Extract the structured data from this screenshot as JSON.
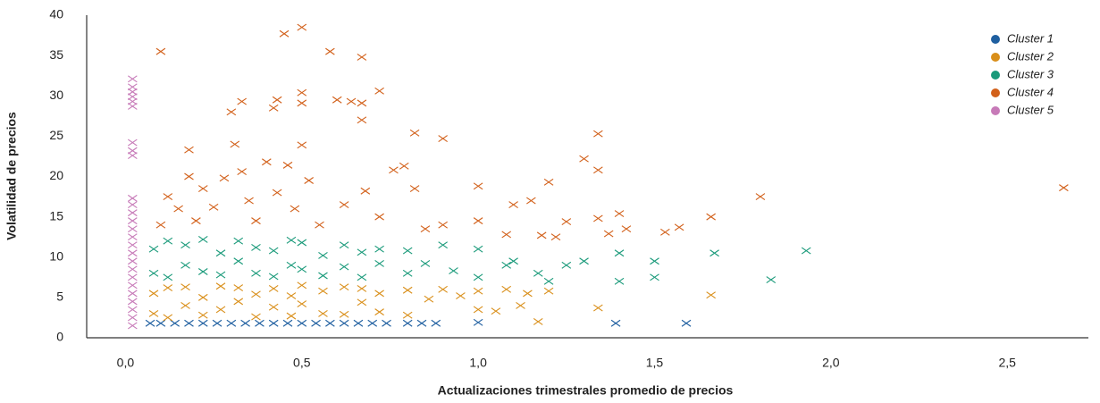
{
  "chart_data": {
    "type": "scatter",
    "x_label": "Actualizaciones trimestrales promedio de precios",
    "y_label": "Volatilidad de precios",
    "xlim": [
      -0.11,
      2.73
    ],
    "ylim": [
      0,
      40
    ],
    "xticks": [
      {
        "value": 0,
        "label": "0,0"
      },
      {
        "value": 0.5,
        "label": "0,5"
      },
      {
        "value": 1,
        "label": "1,0"
      },
      {
        "value": 1.5,
        "label": "1,5"
      },
      {
        "value": 2,
        "label": "2,0"
      },
      {
        "value": 2.5,
        "label": "2,5"
      }
    ],
    "yticks": [
      0,
      5,
      10,
      15,
      20,
      25,
      30,
      35,
      40
    ],
    "grid": false,
    "legend": "upper right",
    "series": [
      {
        "name": "Cluster 1",
        "color": "#1f5fa0",
        "x": [
          0.07,
          0.1,
          0.14,
          0.18,
          0.22,
          0.26,
          0.3,
          0.34,
          0.38,
          0.42,
          0.46,
          0.5,
          0.54,
          0.58,
          0.62,
          0.66,
          0.7,
          0.74,
          0.8,
          0.84,
          0.88,
          1.0,
          1.39,
          1.59
        ],
        "values": [
          1.8,
          1.8,
          1.8,
          1.8,
          1.8,
          1.8,
          1.8,
          1.8,
          1.8,
          1.8,
          1.8,
          1.8,
          1.8,
          1.8,
          1.8,
          1.8,
          1.8,
          1.8,
          1.8,
          1.8,
          1.8,
          1.9,
          1.8,
          1.8
        ]
      },
      {
        "name": "Cluster 2",
        "color": "#d98f1a",
        "x": [
          0.08,
          0.08,
          0.12,
          0.12,
          0.17,
          0.17,
          0.22,
          0.22,
          0.27,
          0.27,
          0.32,
          0.32,
          0.37,
          0.37,
          0.42,
          0.42,
          0.47,
          0.47,
          0.5,
          0.5,
          0.56,
          0.56,
          0.62,
          0.62,
          0.67,
          0.67,
          0.72,
          0.72,
          0.8,
          0.8,
          0.86,
          0.9,
          0.95,
          1.0,
          1.0,
          1.05,
          1.08,
          1.12,
          1.14,
          1.17,
          1.2,
          1.34,
          1.66
        ],
        "values": [
          3,
          5.5,
          2.5,
          6.2,
          4,
          6.3,
          2.8,
          5,
          3.5,
          6.4,
          4.5,
          6.2,
          2.6,
          5.4,
          3.8,
          6.1,
          2.7,
          5.2,
          4.2,
          6.5,
          3,
          5.8,
          2.9,
          6.3,
          4.4,
          6.1,
          3.2,
          5.5,
          2.8,
          5.9,
          4.8,
          6.0,
          5.2,
          3.5,
          5.8,
          3.3,
          6.0,
          4.0,
          5.5,
          2.0,
          5.8,
          3.7,
          5.3
        ]
      },
      {
        "name": "Cluster 3",
        "color": "#1a9a7a",
        "x": [
          0.08,
          0.08,
          0.12,
          0.12,
          0.17,
          0.17,
          0.22,
          0.22,
          0.27,
          0.27,
          0.32,
          0.32,
          0.37,
          0.37,
          0.42,
          0.42,
          0.47,
          0.47,
          0.5,
          0.5,
          0.56,
          0.56,
          0.62,
          0.62,
          0.67,
          0.67,
          0.72,
          0.72,
          0.8,
          0.8,
          0.85,
          0.9,
          0.93,
          1.0,
          1.0,
          1.08,
          1.1,
          1.17,
          1.2,
          1.25,
          1.3,
          1.4,
          1.4,
          1.5,
          1.5,
          1.67,
          1.83,
          1.93
        ],
        "values": [
          8,
          11,
          7.5,
          12,
          9,
          11.5,
          8.2,
          12.2,
          7.8,
          10.5,
          9.5,
          12,
          8,
          11.2,
          7.6,
          10.8,
          9,
          12.1,
          8.5,
          11.8,
          7.7,
          10.2,
          8.8,
          11.5,
          7.5,
          10.6,
          9.2,
          11,
          8,
          10.8,
          9.2,
          11.5,
          8.3,
          7.5,
          11,
          9,
          9.5,
          8,
          7,
          9,
          9.5,
          7,
          10.5,
          7.5,
          9.5,
          10.5,
          7.2,
          10.8
        ]
      },
      {
        "name": "Cluster 4",
        "color": "#d2601a",
        "x": [
          0.1,
          0.1,
          0.12,
          0.15,
          0.18,
          0.18,
          0.2,
          0.22,
          0.25,
          0.28,
          0.3,
          0.31,
          0.33,
          0.33,
          0.35,
          0.37,
          0.4,
          0.42,
          0.43,
          0.43,
          0.45,
          0.46,
          0.48,
          0.5,
          0.5,
          0.5,
          0.5,
          0.52,
          0.55,
          0.58,
          0.6,
          0.62,
          0.64,
          0.67,
          0.67,
          0.67,
          0.68,
          0.72,
          0.72,
          0.76,
          0.79,
          0.82,
          0.82,
          0.85,
          0.9,
          0.9,
          1.0,
          1.0,
          1.08,
          1.1,
          1.15,
          1.18,
          1.2,
          1.22,
          1.25,
          1.3,
          1.34,
          1.34,
          1.34,
          1.37,
          1.4,
          1.42,
          1.53,
          1.57,
          1.66,
          1.8,
          2.66
        ],
        "values": [
          35.5,
          14,
          17.5,
          16,
          23.3,
          20,
          14.5,
          18.5,
          16.2,
          19.8,
          28,
          24,
          29.3,
          20.6,
          17,
          14.5,
          21.8,
          28.5,
          29.5,
          18,
          37.7,
          21.4,
          16,
          38.5,
          30.4,
          29.1,
          23.9,
          19.5,
          14,
          35.5,
          29.5,
          16.5,
          29.3,
          34.8,
          29.1,
          27,
          18.2,
          30.6,
          15,
          20.8,
          21.3,
          25.4,
          18.5,
          13.5,
          24.7,
          14,
          18.8,
          14.5,
          12.8,
          16.5,
          17,
          12.7,
          19.3,
          12.5,
          14.4,
          22.2,
          25.3,
          20.8,
          14.8,
          12.9,
          15.4,
          13.5,
          13.1,
          13.7,
          15,
          17.5,
          18.6
        ]
      },
      {
        "name": "Cluster 5",
        "color": "#c77ab8",
        "x": [
          0.02,
          0.02,
          0.02,
          0.02,
          0.02,
          0.02,
          0.02,
          0.02,
          0.02,
          0.02,
          0.02,
          0.02,
          0.02,
          0.02,
          0.02,
          0.02,
          0.02,
          0.02,
          0.02,
          0.02,
          0.02,
          0.02,
          0.02,
          0.02,
          0.02,
          0.02
        ],
        "values": [
          1.5,
          2.5,
          3.5,
          4.5,
          5.5,
          6.5,
          7.5,
          8.5,
          9.5,
          10.5,
          11.5,
          12.5,
          13.5,
          14.5,
          15.5,
          16.5,
          17.3,
          22.6,
          23.2,
          24.2,
          28.7,
          29.3,
          29.9,
          30.5,
          31.1,
          32.1
        ]
      }
    ]
  }
}
